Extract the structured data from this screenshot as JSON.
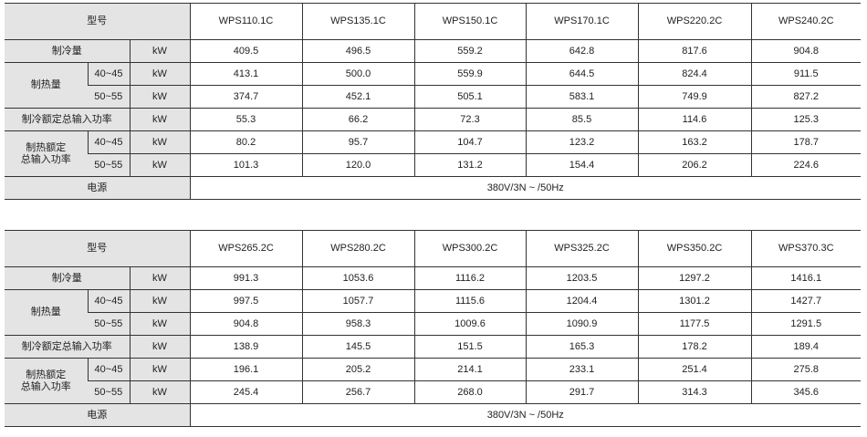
{
  "labels": {
    "model": "型号",
    "cooling_capacity": "制冷量",
    "heating_capacity": "制热量",
    "cooling_power": "制冷额定总输入功率",
    "heating_power_line1": "制热额定",
    "heating_power_line2": "总输入功率",
    "power_supply": "电源",
    "range_low": "40~45",
    "range_high": "50~55",
    "unit": "kW"
  },
  "tables": [
    {
      "models": [
        "WPS110.1C",
        "WPS135.1C",
        "WPS150.1C",
        "WPS170.1C",
        "WPS220.2C",
        "WPS240.2C"
      ],
      "cooling_capacity": [
        "409.5",
        "496.5",
        "559.2",
        "642.8",
        "817.6",
        "904.8"
      ],
      "heating_capacity_40_45": [
        "413.1",
        "500.0",
        "559.9",
        "644.5",
        "824.4",
        "911.5"
      ],
      "heating_capacity_50_55": [
        "374.7",
        "452.1",
        "505.1",
        "583.1",
        "749.9",
        "827.2"
      ],
      "cooling_power": [
        "55.3",
        "66.2",
        "72.3",
        "85.5",
        "114.6",
        "125.3"
      ],
      "heating_power_40_45": [
        "80.2",
        "95.7",
        "104.7",
        "123.2",
        "163.2",
        "178.7"
      ],
      "heating_power_50_55": [
        "101.3",
        "120.0",
        "131.2",
        "154.4",
        "206.2",
        "224.6"
      ],
      "power_supply": "380V/3N ~ /50Hz"
    },
    {
      "models": [
        "WPS265.2C",
        "WPS280.2C",
        "WPS300.2C",
        "WPS325.2C",
        "WPS350.2C",
        "WPS370.3C"
      ],
      "cooling_capacity": [
        "991.3",
        "1053.6",
        "1116.2",
        "1203.5",
        "1297.2",
        "1416.1"
      ],
      "heating_capacity_40_45": [
        "997.5",
        "1057.7",
        "1115.6",
        "1204.4",
        "1301.2",
        "1427.7"
      ],
      "heating_capacity_50_55": [
        "904.8",
        "958.3",
        "1009.6",
        "1090.9",
        "1177.5",
        "1291.5"
      ],
      "cooling_power": [
        "138.9",
        "145.5",
        "151.5",
        "165.3",
        "178.2",
        "189.4"
      ],
      "heating_power_40_45": [
        "196.1",
        "205.2",
        "214.1",
        "233.1",
        "251.4",
        "275.8"
      ],
      "heating_power_50_55": [
        "245.4",
        "256.7",
        "268.0",
        "291.7",
        "314.3",
        "345.6"
      ],
      "power_supply": "380V/3N ~ /50Hz"
    }
  ]
}
